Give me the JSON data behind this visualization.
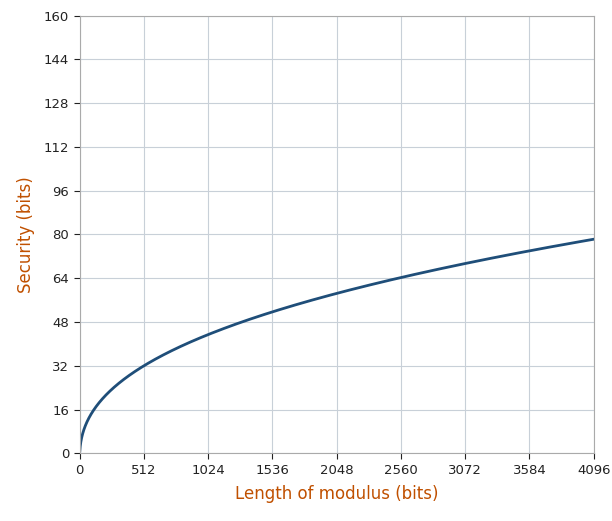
{
  "title": "",
  "xlabel": "Length of modulus (bits)",
  "ylabel": "Security (bits)",
  "xlim": [
    0,
    4096
  ],
  "ylim": [
    0,
    160
  ],
  "xticks": [
    0,
    512,
    1024,
    1536,
    2048,
    2560,
    3072,
    3584,
    4096
  ],
  "yticks": [
    0,
    16,
    32,
    48,
    64,
    80,
    96,
    112,
    128,
    144,
    160
  ],
  "line_color": "#1f4e79",
  "line_width": 2.0,
  "grid_color": "#c8d0d8",
  "background_color": "#ffffff",
  "xlabel_color": "#c05000",
  "ylabel_color": "#c05000",
  "tick_label_color": "#222222",
  "xlabel_fontsize": 12,
  "ylabel_fontsize": 12,
  "tick_fontsize": 9.5,
  "spine_color": "#aaaaaa"
}
